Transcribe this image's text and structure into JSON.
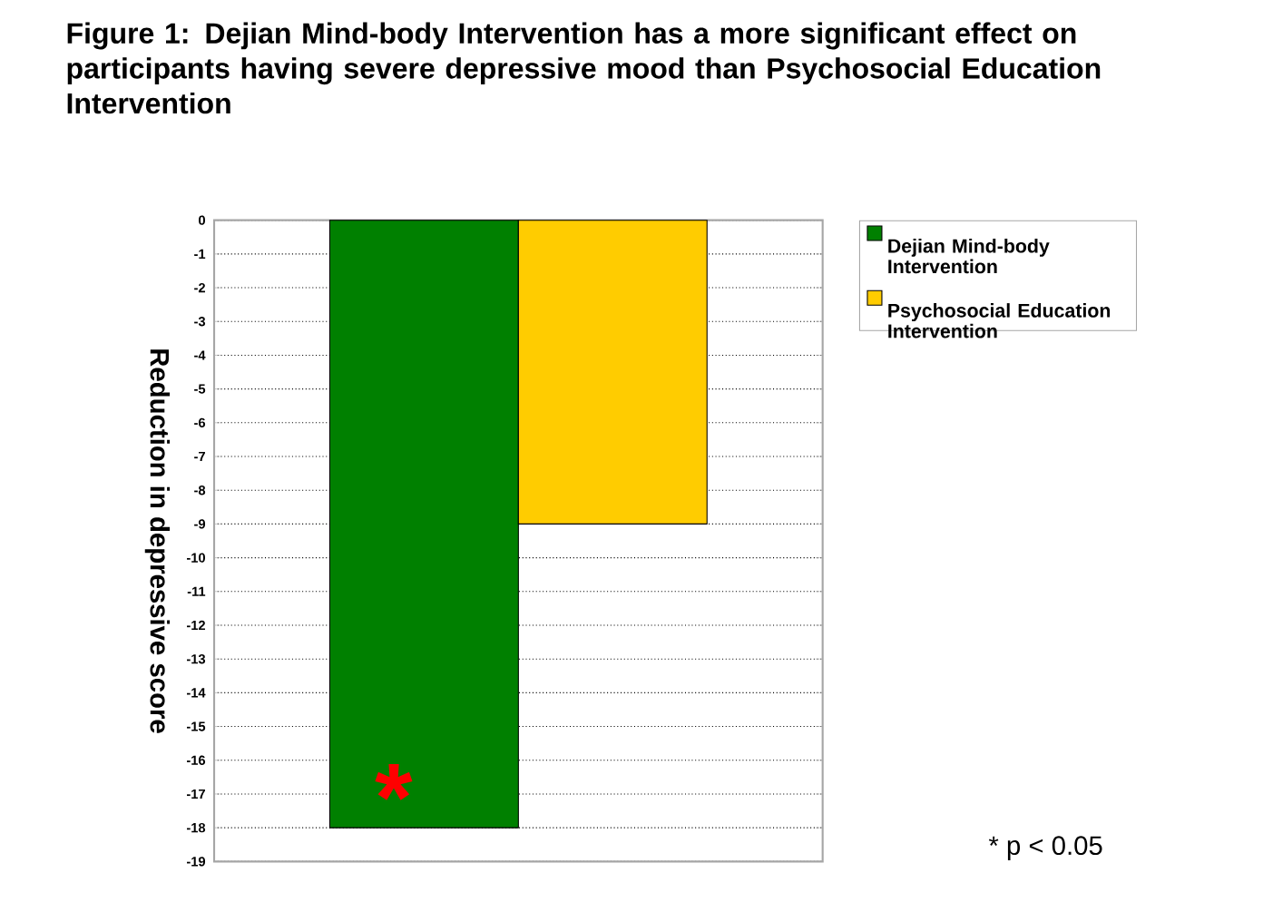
{
  "chart_data": {
    "type": "bar",
    "title": "Figure 1: Dejian Mind-body Intervention has a more significant effect on participants having severe depressive mood than Psychosocial Education Intervention",
    "ylabel": "Reduction in depressive score",
    "categories": [
      null
    ],
    "series": [
      {
        "name": "Dejian Mind-body Intervention",
        "color": "#008000",
        "values": [
          -18
        ]
      },
      {
        "name": "Psychosocial Education Intervention",
        "color": "#ffcc00",
        "values": [
          -9
        ]
      }
    ],
    "ylim": [
      -19,
      0
    ],
    "yticks": [
      0,
      -1,
      -2,
      -3,
      -4,
      -5,
      -6,
      -7,
      -8,
      -9,
      -10,
      -11,
      -12,
      -13,
      -14,
      -15,
      -16,
      -17,
      -18,
      -19
    ],
    "grid": "y",
    "legend": "right",
    "annotations": [
      "*",
      "* p < 0.05"
    ]
  }
}
